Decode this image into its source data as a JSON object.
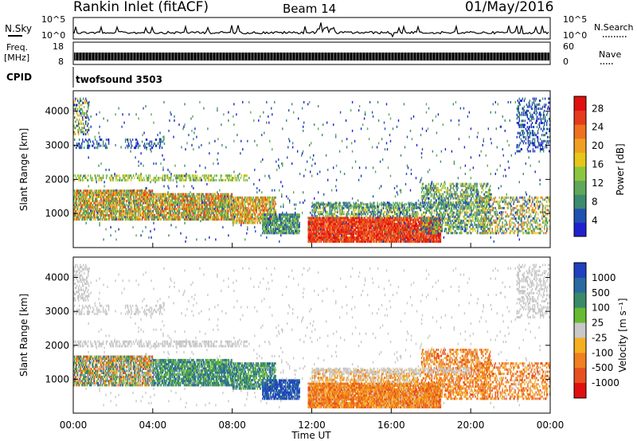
{
  "header": {
    "station": "Rankin Inlet (fitACF)",
    "beam": "Beam 14",
    "date": "01/May/2016"
  },
  "noise_panel": {
    "left_label": "N.Sky",
    "right_label": "N.Search",
    "left_ticks": [
      "10^5",
      "10^0"
    ],
    "right_ticks": [
      "10^5",
      "10^0"
    ]
  },
  "freq_panel": {
    "left_label_line1": "Freq.",
    "left_label_line2": "[MHz]",
    "right_label": "Nave",
    "left_ticks": [
      "18",
      "8"
    ],
    "right_ticks": [
      "60",
      "0"
    ]
  },
  "cpid_panel": {
    "label": "CPID",
    "program": "twofsound 3503"
  },
  "power_panel": {
    "ylabel": "Slant Range [km]",
    "yticks": [
      "1000",
      "2000",
      "3000",
      "4000"
    ],
    "colorbar_label": "Power [dB]",
    "colorbar_ticks": [
      "4",
      "8",
      "12",
      "16",
      "20",
      "24",
      "28"
    ],
    "colors": [
      "#2020d0",
      "#2050b0",
      "#3c8a70",
      "#5fa85a",
      "#8cc63f",
      "#e6c619",
      "#f0a020",
      "#f07020",
      "#e63a1e",
      "#e01010"
    ]
  },
  "velocity_panel": {
    "ylabel": "Slant Range [km]",
    "yticks": [
      "1000",
      "2000",
      "3000",
      "4000"
    ],
    "colorbar_label": "Velocity [m s⁻¹]",
    "colorbar_ticks": [
      "1000",
      "500",
      "100",
      "25",
      "-25",
      "-100",
      "-500",
      "-1000"
    ],
    "colors": [
      "#2040c0",
      "#2a6aa0",
      "#3a8a6a",
      "#66bb33",
      "#c8c8c8",
      "#f5b020",
      "#f08020",
      "#e85020",
      "#e01010"
    ]
  },
  "xaxis": {
    "ticks": [
      "00:00",
      "04:00",
      "08:00",
      "12:00",
      "16:00",
      "20:00",
      "00:00"
    ],
    "label": "Time UT"
  }
}
